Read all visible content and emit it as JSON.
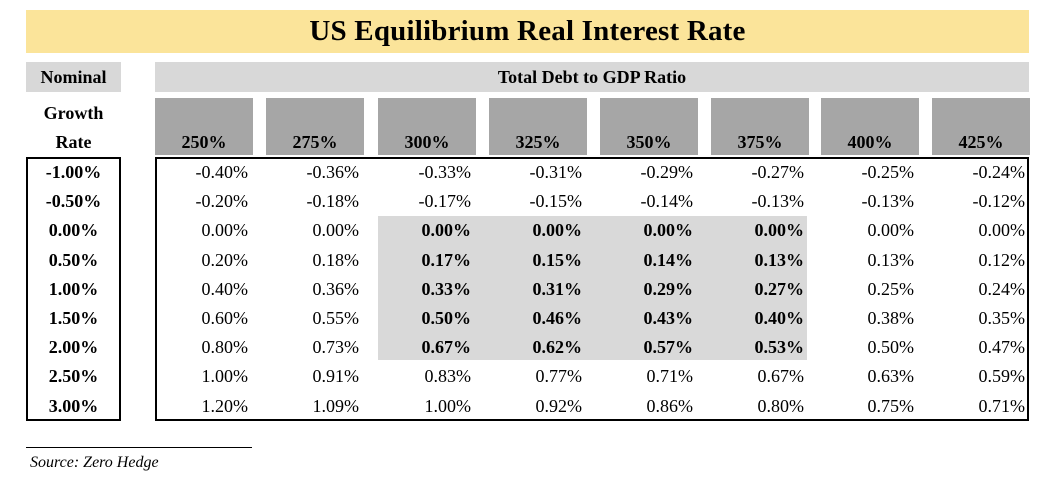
{
  "chart_data": {
    "type": "table",
    "title": "US Equilibrium Real Interest Rate",
    "column_group_label": "Total Debt to GDP Ratio",
    "row_header_lines": [
      "Nominal",
      "Growth",
      "Rate"
    ],
    "columns": [
      "250%",
      "275%",
      "300%",
      "325%",
      "350%",
      "375%",
      "400%",
      "425%"
    ],
    "rows": [
      "-1.00%",
      "-0.50%",
      "0.00%",
      "0.50%",
      "1.00%",
      "1.50%",
      "2.00%",
      "2.50%",
      "3.00%"
    ],
    "values": [
      [
        "-0.40%",
        "-0.36%",
        "-0.33%",
        "-0.31%",
        "-0.29%",
        "-0.27%",
        "-0.25%",
        "-0.24%"
      ],
      [
        "-0.20%",
        "-0.18%",
        "-0.17%",
        "-0.15%",
        "-0.14%",
        "-0.13%",
        "-0.13%",
        "-0.12%"
      ],
      [
        "0.00%",
        "0.00%",
        "0.00%",
        "0.00%",
        "0.00%",
        "0.00%",
        "0.00%",
        "0.00%"
      ],
      [
        "0.20%",
        "0.18%",
        "0.17%",
        "0.15%",
        "0.14%",
        "0.13%",
        "0.13%",
        "0.12%"
      ],
      [
        "0.40%",
        "0.36%",
        "0.33%",
        "0.31%",
        "0.29%",
        "0.27%",
        "0.25%",
        "0.24%"
      ],
      [
        "0.60%",
        "0.55%",
        "0.50%",
        "0.46%",
        "0.43%",
        "0.40%",
        "0.38%",
        "0.35%"
      ],
      [
        "0.80%",
        "0.73%",
        "0.67%",
        "0.62%",
        "0.57%",
        "0.53%",
        "0.50%",
        "0.47%"
      ],
      [
        "1.00%",
        "0.91%",
        "0.83%",
        "0.77%",
        "0.71%",
        "0.67%",
        "0.63%",
        "0.59%"
      ],
      [
        "1.20%",
        "1.09%",
        "1.00%",
        "0.92%",
        "0.86%",
        "0.80%",
        "0.75%",
        "0.71%"
      ]
    ],
    "highlight": {
      "row_start": 2,
      "row_end": 6,
      "col_start": 2,
      "col_end": 5
    },
    "source": "Source: Zero Hedge"
  },
  "colors": {
    "title_bg": "#fbe49a",
    "subheader_bg": "#d8d8d8",
    "column_header_bg": "#a6a6a6",
    "highlight_bg": "#d9d9d9"
  }
}
